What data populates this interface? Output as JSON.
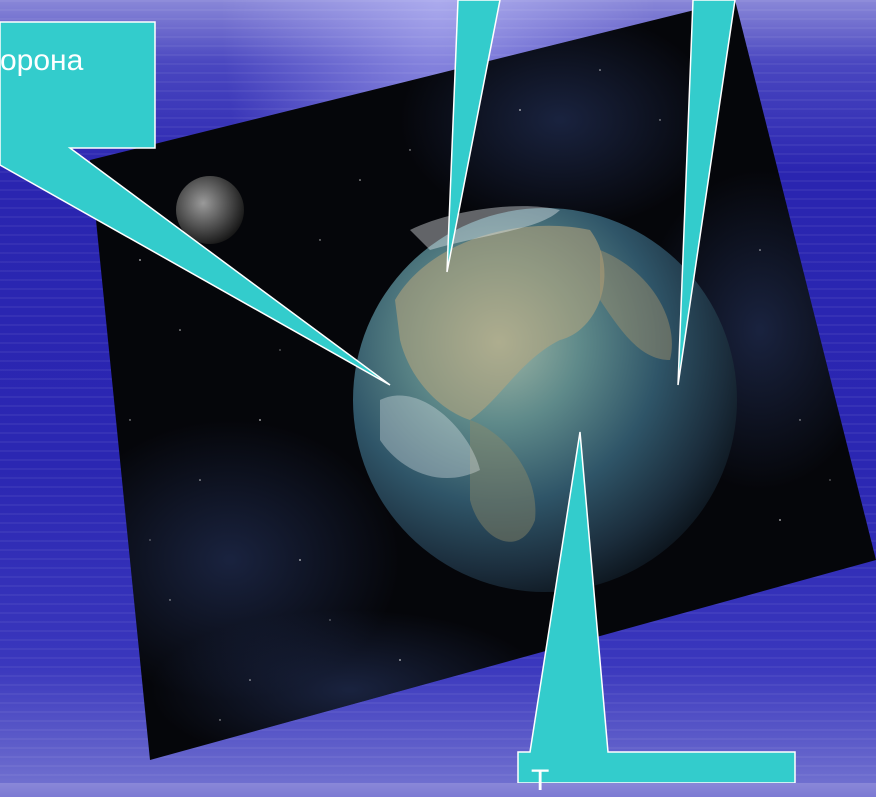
{
  "slide": {
    "callouts": {
      "left_label": "орона",
      "bottom_label": "Т"
    },
    "image": {
      "subject": "earth-in-space-photo"
    }
  },
  "colors": {
    "background": "#2b27b2",
    "callout_fill": "#33cccc",
    "callout_stroke": "#ffffff",
    "space": "#05060a"
  }
}
